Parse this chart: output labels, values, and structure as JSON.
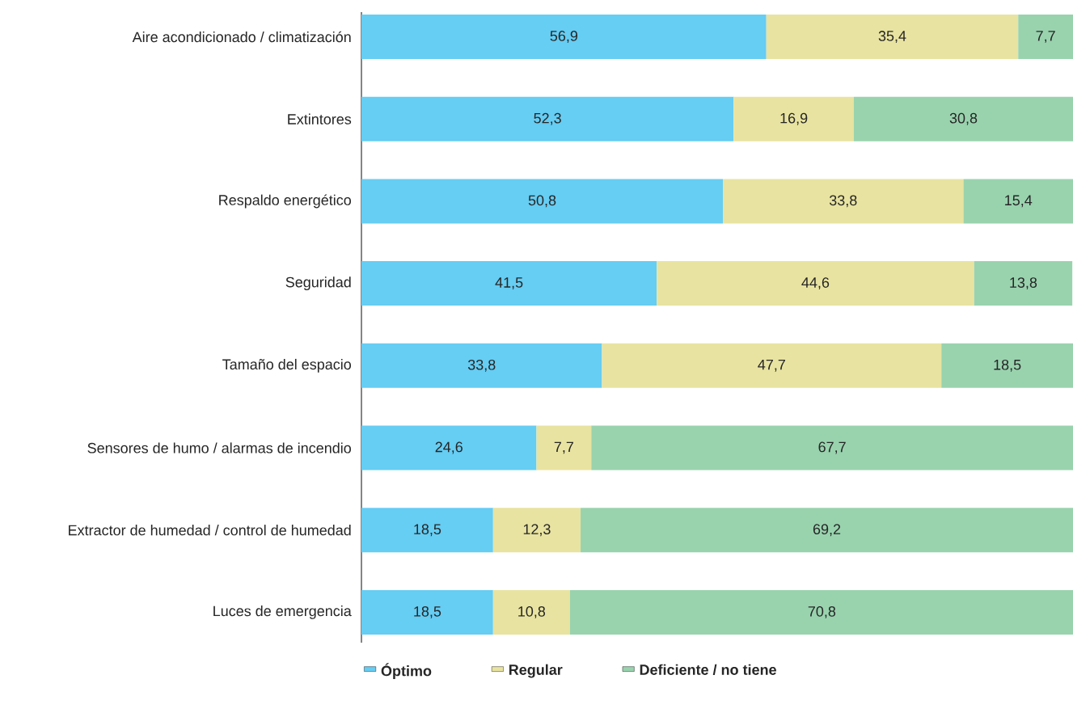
{
  "chart_data": {
    "type": "bar",
    "orientation": "horizontal",
    "stacked": true,
    "legend": "bottom",
    "xlim": [
      0,
      100
    ],
    "categories": [
      "Aire acondicionado / climatización",
      "Extintores",
      "Respaldo energético",
      "Seguridad",
      "Tamaño del espacio",
      "Sensores de humo / alarmas de incendio",
      "Extractor de humedad / control de humedad",
      "Luces de emergencia"
    ],
    "series": [
      {
        "name": "Óptimo",
        "color": "#66cdf3",
        "values": [
          56.9,
          52.3,
          50.8,
          41.5,
          33.8,
          24.6,
          18.5,
          18.5
        ],
        "value_labels": [
          "56,9",
          "52,3",
          "50,8",
          "41,5",
          "33,8",
          "24,6",
          "18,5",
          "18,5"
        ]
      },
      {
        "name": "Regular",
        "color": "#e8e3a0",
        "values": [
          35.4,
          16.9,
          33.8,
          44.6,
          47.7,
          7.7,
          12.3,
          10.8
        ],
        "value_labels": [
          "35,4",
          "16,9",
          "33,8",
          "44,6",
          "47,7",
          "7,7",
          "12,3",
          "10,8"
        ]
      },
      {
        "name": "Deficiente / no tiene",
        "color": "#99d3ae",
        "values": [
          7.7,
          30.8,
          15.4,
          13.8,
          18.5,
          67.7,
          69.2,
          70.8
        ],
        "value_labels": [
          "7,7",
          "30,8",
          "15,4",
          "13,8",
          "18,5",
          "67,7",
          "69,2",
          "70,8"
        ]
      }
    ]
  }
}
